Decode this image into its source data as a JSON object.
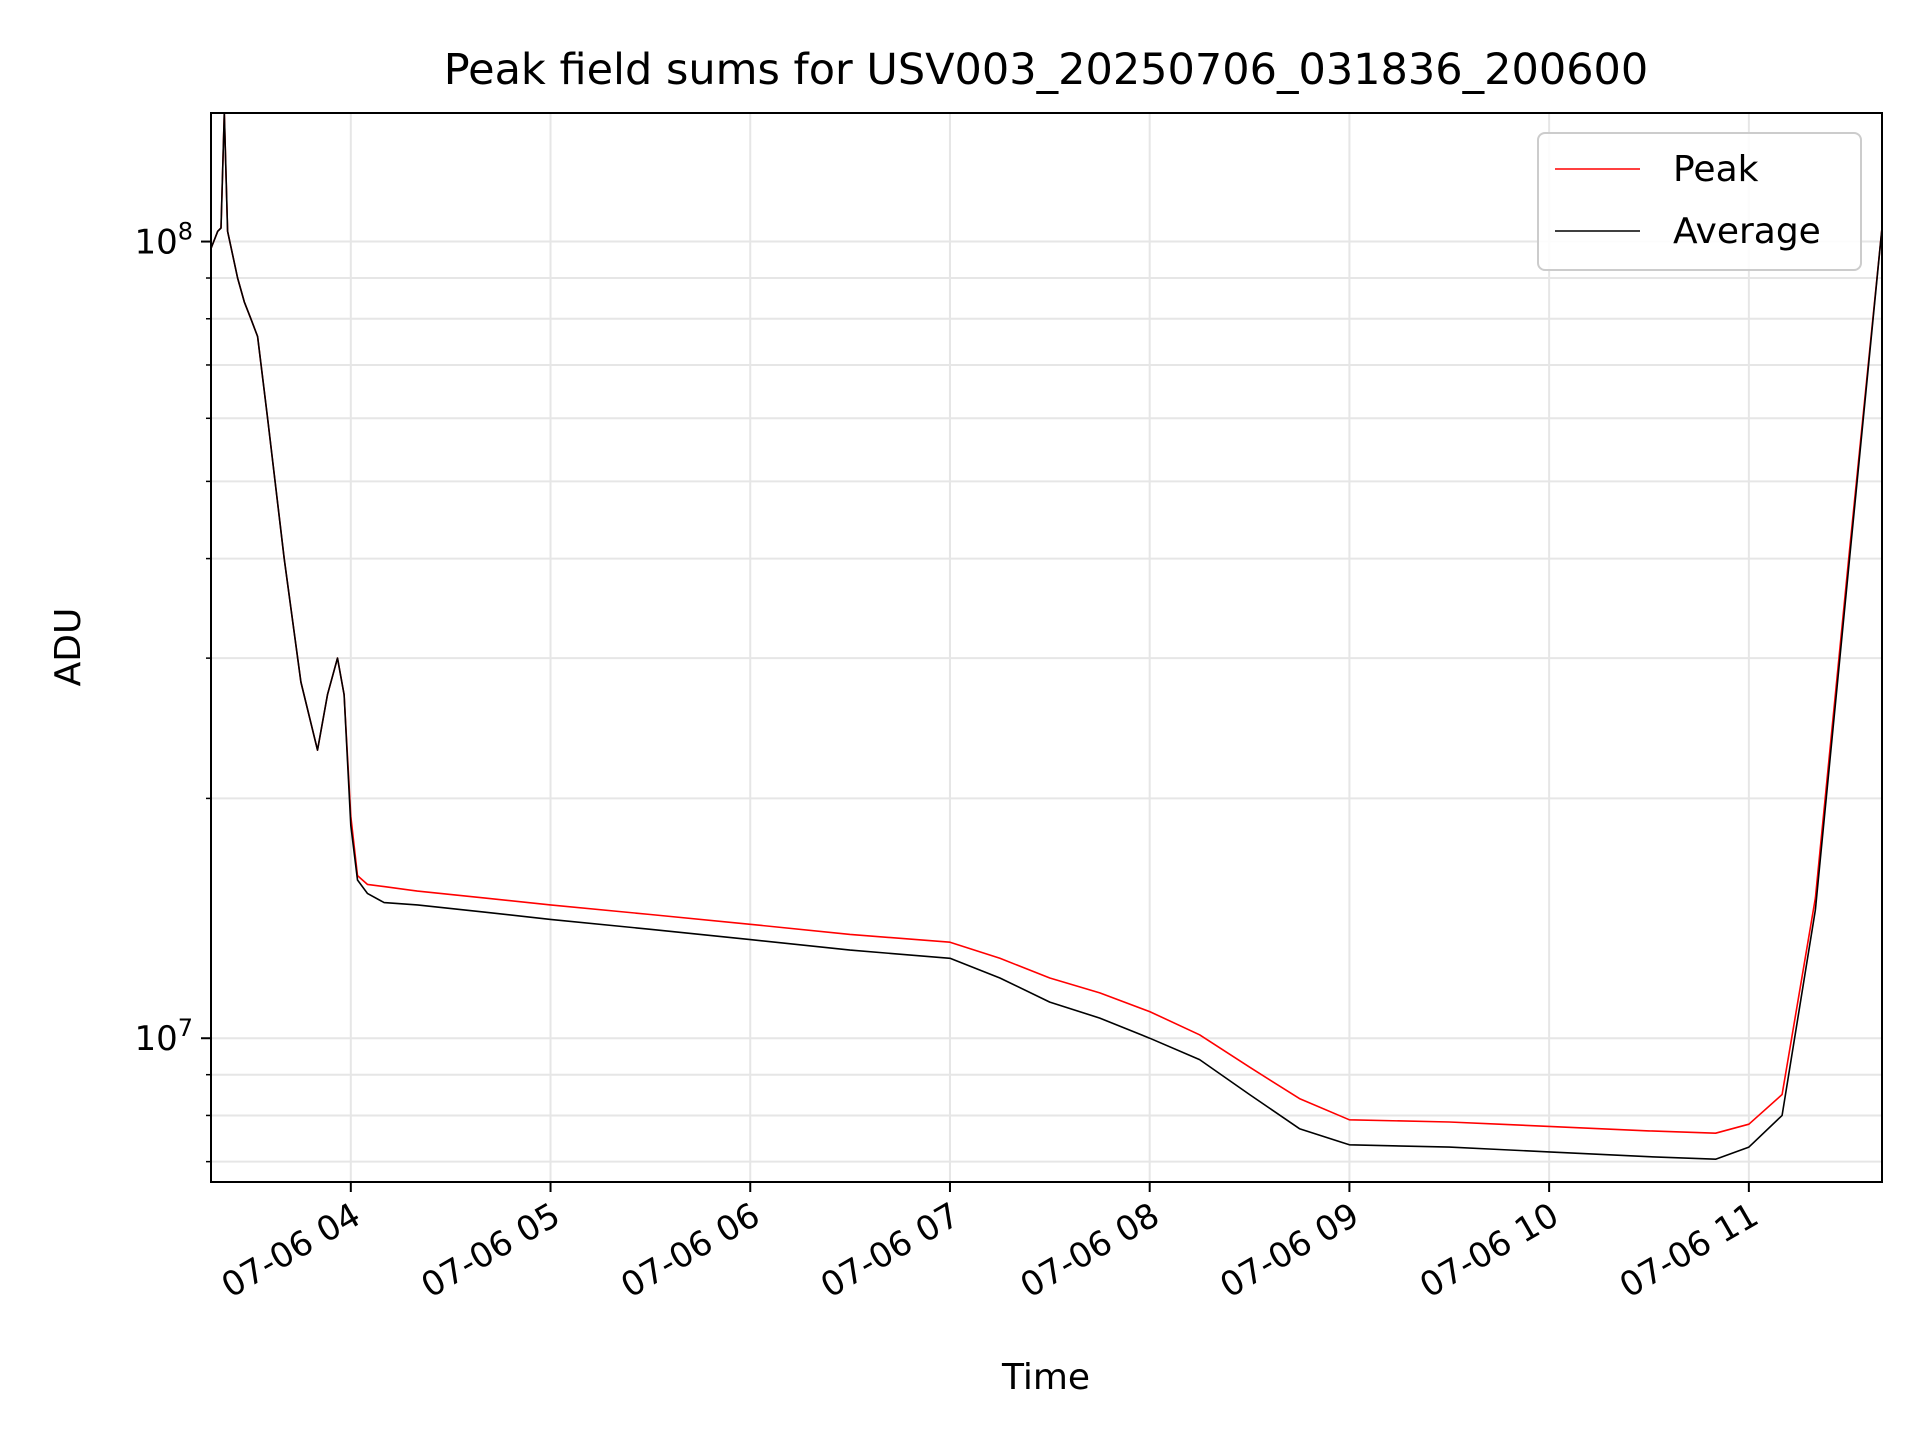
{
  "chart_data": {
    "type": "line",
    "title": "Peak field sums for USV003_20250706_031836_200600",
    "xlabel": "Time",
    "ylabel": "ADU",
    "yscale": "log",
    "ylim": [
      6600000,
      145000000
    ],
    "xlim": [
      "2025-07-06 03:18",
      "2025-07-06 11:40"
    ],
    "x_ticks": [
      "07-06 04",
      "07-06 05",
      "07-06 06",
      "07-06 07",
      "07-06 08",
      "07-06 09",
      "07-06 10",
      "07-06 11"
    ],
    "y_ticks": [
      {
        "value": 10000000,
        "base": "10",
        "exp": "7"
      },
      {
        "value": 100000000,
        "base": "10",
        "exp": "8"
      }
    ],
    "grid": true,
    "legend_position": "top-right",
    "series": [
      {
        "name": "Peak",
        "color": "#ff0000",
        "x": [
          "03:18",
          "03:20",
          "03:21",
          "03:22",
          "03:23",
          "03:26",
          "03:28",
          "03:30",
          "03:32",
          "03:35",
          "03:40",
          "03:45",
          "03:50",
          "03:53",
          "03:56",
          "03:58",
          "04:00",
          "04:02",
          "04:05",
          "04:10",
          "04:20",
          "04:40",
          "05:00",
          "05:30",
          "06:00",
          "06:30",
          "07:00",
          "07:15",
          "07:30",
          "07:45",
          "08:00",
          "08:15",
          "08:30",
          "08:45",
          "09:00",
          "09:30",
          "09:45",
          "10:00",
          "10:30",
          "10:50",
          "11:00",
          "11:10",
          "11:20",
          "11:30",
          "11:40"
        ],
        "y": [
          98000000,
          103000000,
          104000000,
          145000000,
          103000000,
          90000000,
          84000000,
          80000000,
          76000000,
          60000000,
          40000000,
          28000000,
          23000000,
          27000000,
          30000000,
          27000000,
          19000000,
          16000000,
          15600000,
          15500000,
          15300000,
          15000000,
          14700000,
          14300000,
          13900000,
          13500000,
          13200000,
          12600000,
          11900000,
          11400000,
          10800000,
          10100000,
          9200000,
          8400000,
          7900000,
          7850000,
          7800000,
          7750000,
          7650000,
          7600000,
          7800000,
          8500000,
          15000000,
          40000000,
          104000000
        ]
      },
      {
        "name": "Average",
        "color": "#000000",
        "x": [
          "03:18",
          "03:20",
          "03:21",
          "03:22",
          "03:23",
          "03:26",
          "03:28",
          "03:30",
          "03:32",
          "03:35",
          "03:40",
          "03:45",
          "03:50",
          "03:53",
          "03:56",
          "03:58",
          "04:00",
          "04:02",
          "04:05",
          "04:10",
          "04:20",
          "04:40",
          "05:00",
          "05:30",
          "06:00",
          "06:30",
          "07:00",
          "07:15",
          "07:30",
          "07:45",
          "08:00",
          "08:15",
          "08:30",
          "08:45",
          "09:00",
          "09:30",
          "09:45",
          "10:00",
          "10:30",
          "10:50",
          "11:00",
          "11:10",
          "11:20",
          "11:30",
          "11:40"
        ],
        "y": [
          98000000,
          103000000,
          104000000,
          145000000,
          103000000,
          90000000,
          84000000,
          80000000,
          76000000,
          60000000,
          40000000,
          28000000,
          23000000,
          27000000,
          30000000,
          27000000,
          18500000,
          15800000,
          15200000,
          14800000,
          14700000,
          14400000,
          14100000,
          13700000,
          13300000,
          12900000,
          12600000,
          11900000,
          11100000,
          10600000,
          10000000,
          9400000,
          8500000,
          7700000,
          7350000,
          7300000,
          7250000,
          7200000,
          7100000,
          7050000,
          7300000,
          8000000,
          14500000,
          39000000,
          104000000
        ]
      }
    ]
  }
}
